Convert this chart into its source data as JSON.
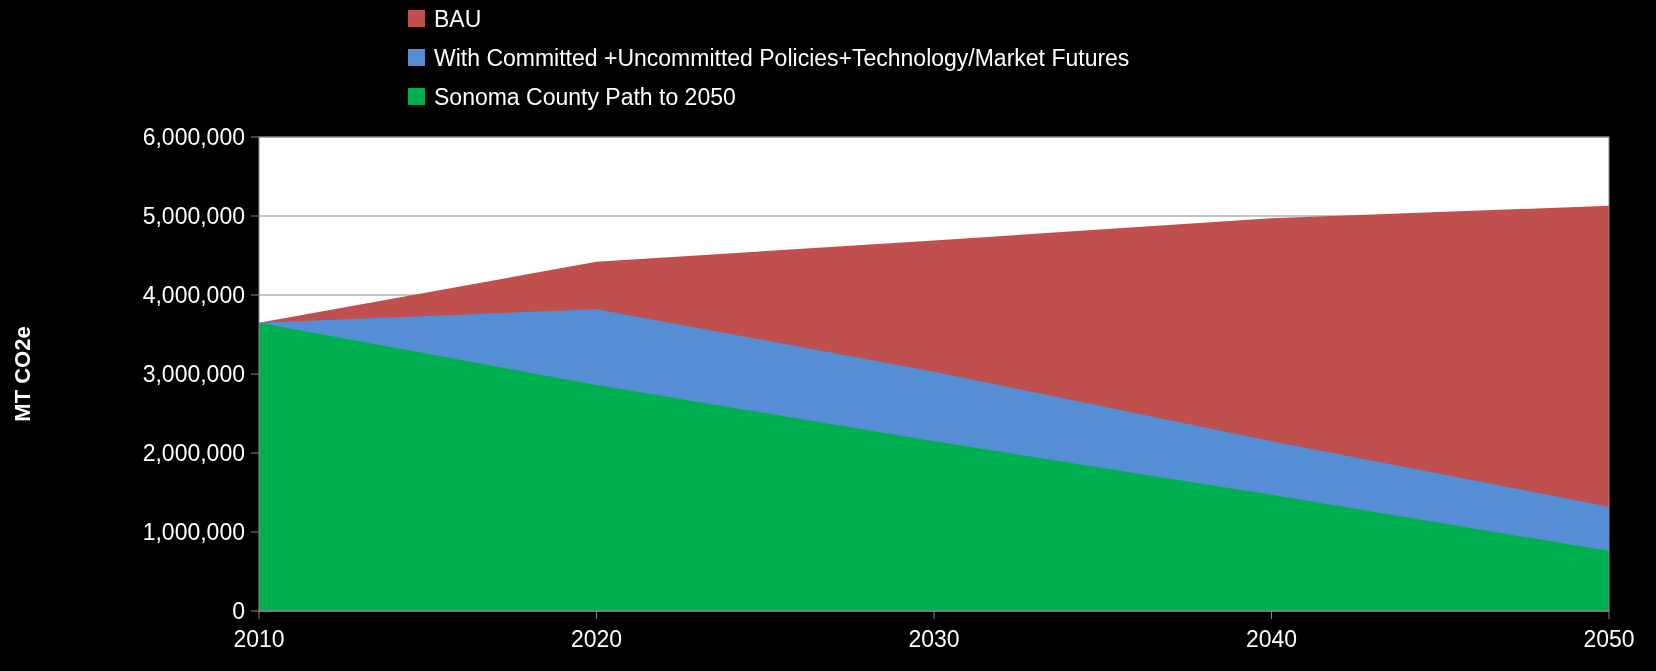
{
  "chart_data": {
    "type": "area",
    "ylabel": "MT CO2e",
    "x": [
      2010,
      2020,
      2030,
      2040,
      2050
    ],
    "series": [
      {
        "name": "BAU",
        "color": "#c0504d",
        "values": [
          3650000,
          4420000,
          4690000,
          4970000,
          5130000
        ]
      },
      {
        "name": "With Committed +Uncommitted Policies+Technology/Market Futures",
        "color": "#558ed5",
        "values": [
          3650000,
          3820000,
          3030000,
          2150000,
          1320000
        ]
      },
      {
        "name": "Sonoma County Path to 2050",
        "color": "#00b050",
        "values": [
          3650000,
          2860000,
          2150000,
          1470000,
          760000
        ]
      }
    ],
    "xlim": [
      2010,
      2050
    ],
    "xticks": [
      2010,
      2020,
      2030,
      2040,
      2050
    ],
    "ylim": [
      0,
      6000000
    ],
    "yticks": [
      0,
      {
        "value": 1000000,
        "label": "1,000,000"
      },
      {
        "value": 2000000,
        "label": "2,000,000"
      },
      {
        "value": 3000000,
        "label": "3,000,000"
      },
      {
        "value": 4000000,
        "label": "4,000,000"
      },
      {
        "value": 5000000,
        "label": "5,000,000"
      },
      {
        "value": 6000000,
        "label": "6,000,000"
      }
    ],
    "grid": "y",
    "legend": "top"
  }
}
